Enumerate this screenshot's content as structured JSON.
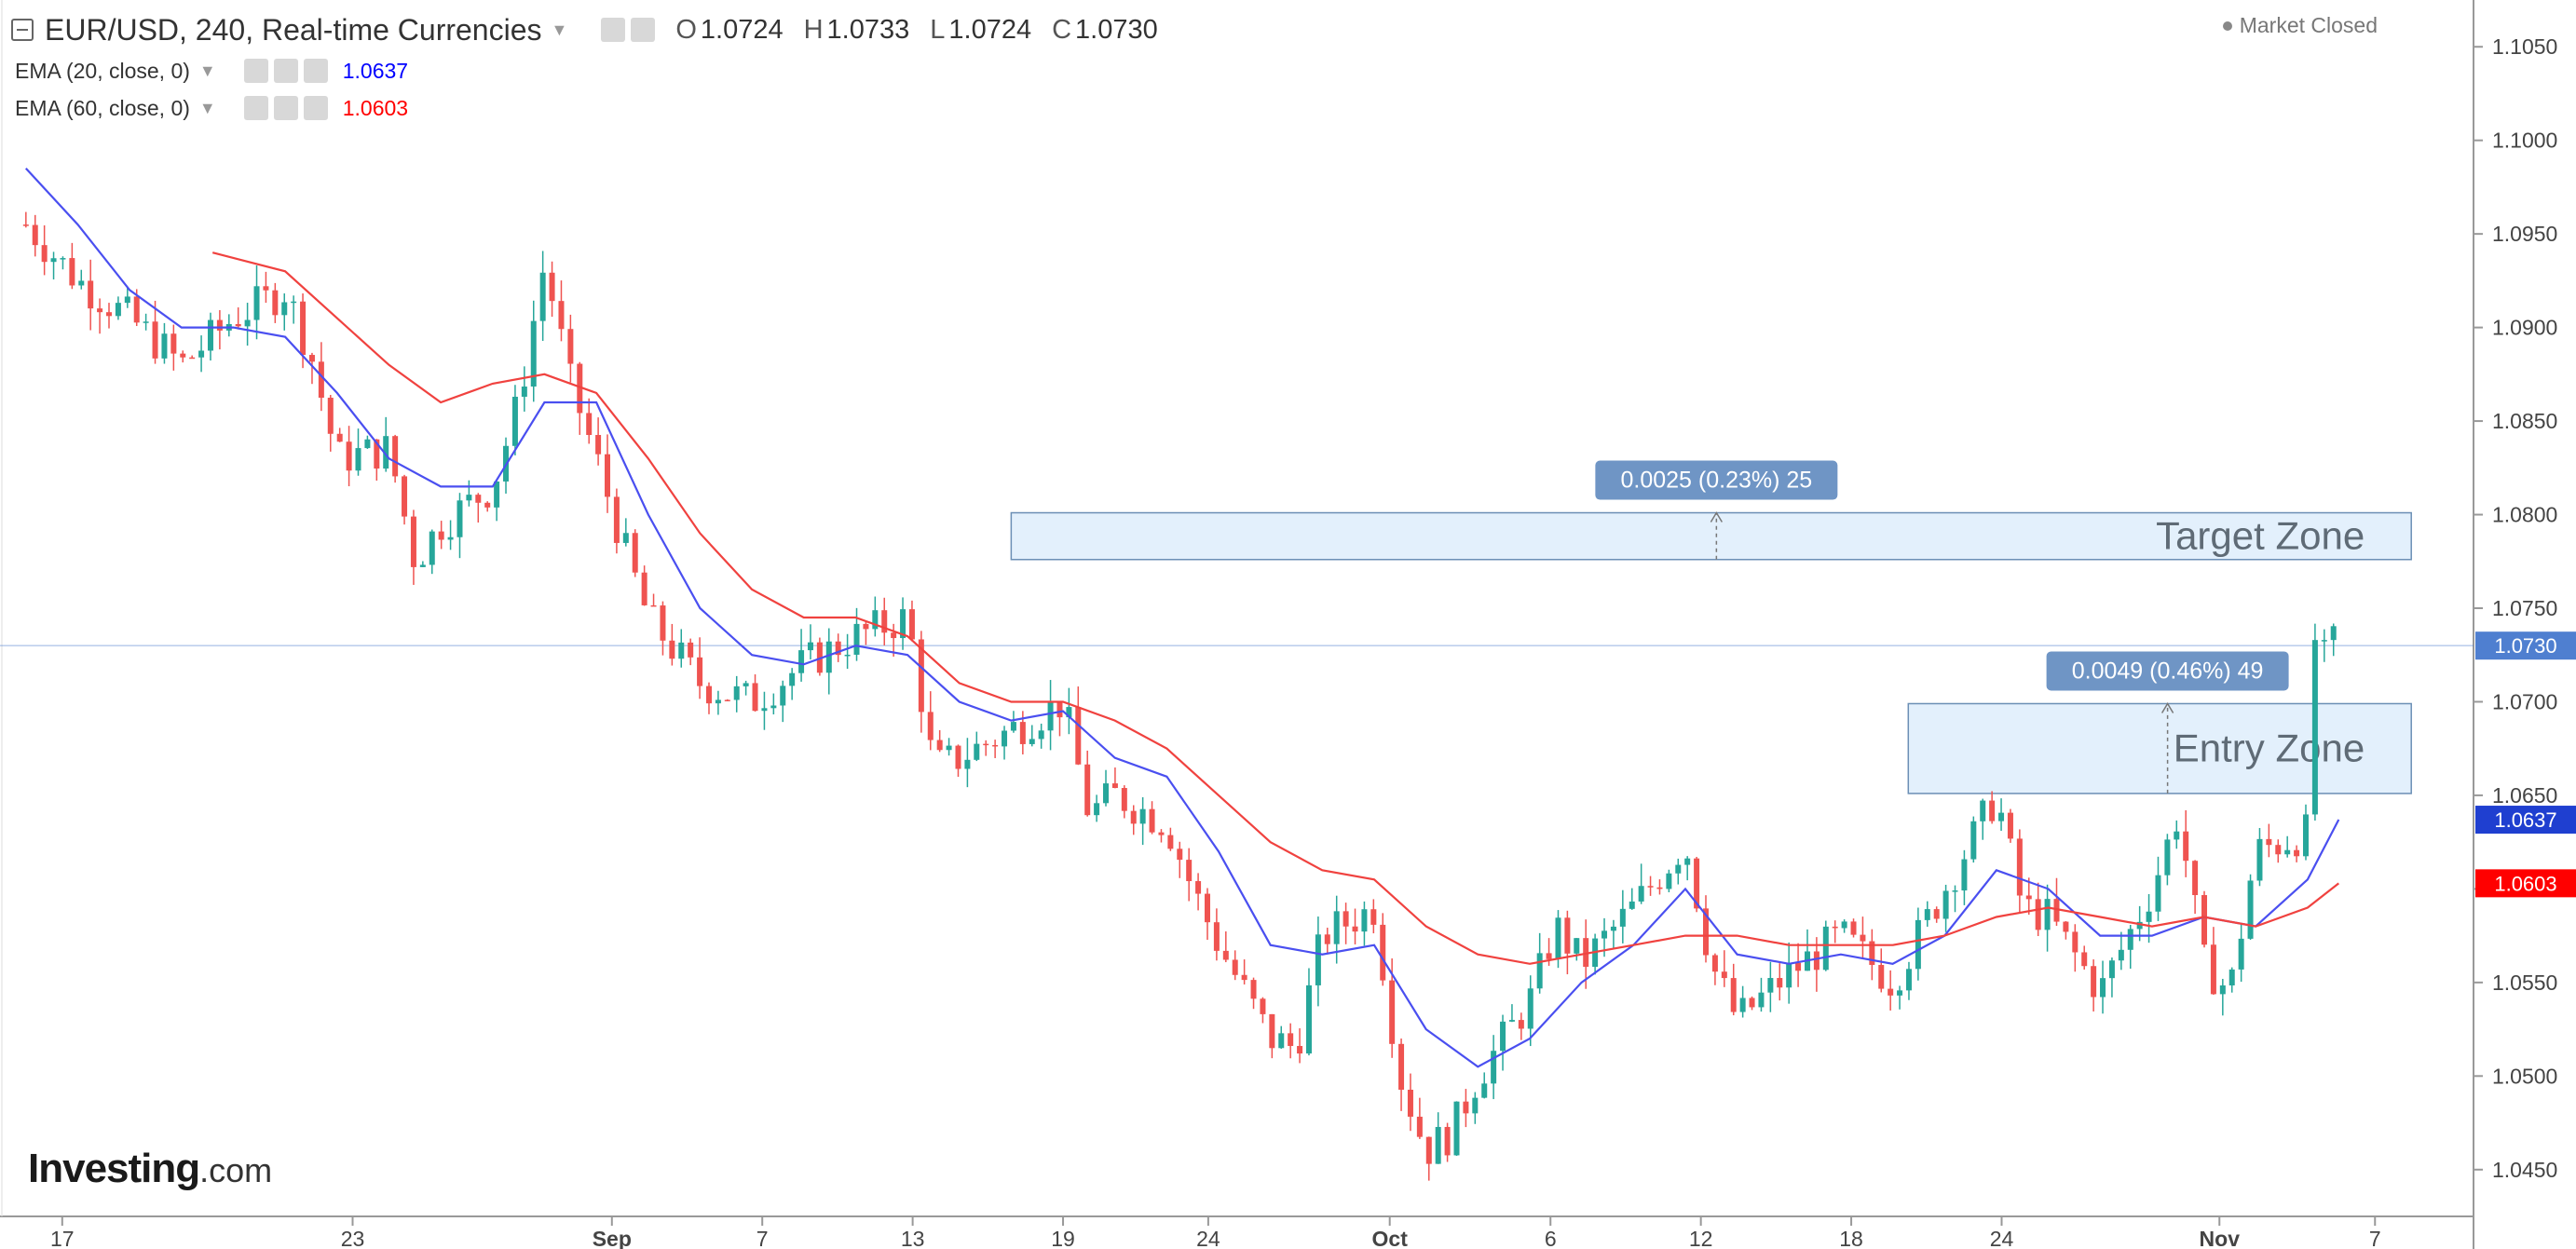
{
  "header": {
    "symbol": "EUR/USD, 240, Real-time Currencies",
    "ohlc": {
      "open_label": "O",
      "open": "1.0724",
      "high_label": "H",
      "high": "1.0733",
      "low_label": "L",
      "low": "1.0724",
      "close_label": "C",
      "close": "1.0730"
    },
    "market_status": "Market Closed"
  },
  "indicators": [
    {
      "label": "EMA (20, close, 0)",
      "value": "1.0637",
      "color": "#0000ff"
    },
    {
      "label": "EMA (60, close, 0)",
      "value": "1.0603",
      "color": "#ff0000"
    }
  ],
  "logo": {
    "main": "Investing",
    "suffix": ".com"
  },
  "colors": {
    "up": "#26a69a",
    "down": "#ef5350",
    "ema20": "#4a4ff0",
    "ema60": "#f0423f",
    "zone_fill": "#e3f0fc",
    "zone_border": "#6b8fb5",
    "callout": "#6f95c5",
    "price_line": "#4f7fd0"
  },
  "chart_data": {
    "type": "candlestick",
    "symbol": "EUR/USD",
    "interval": "240",
    "ylim": [
      1.0425,
      1.1075
    ],
    "y_ticks": [
      "1.1050",
      "1.1000",
      "1.0950",
      "1.0900",
      "1.0850",
      "1.0800",
      "1.0750",
      "1.0700",
      "1.0650",
      "1.0600",
      "1.0550",
      "1.0500",
      "1.0450"
    ],
    "x_ticks": [
      {
        "label": "17",
        "x": 0.7
      },
      {
        "label": "23",
        "x": 6.3
      },
      {
        "label": "Sep",
        "x": 11.3
      },
      {
        "label": "7",
        "x": 14.2
      },
      {
        "label": "13",
        "x": 17.1
      },
      {
        "label": "19",
        "x": 20.0
      },
      {
        "label": "24",
        "x": 22.8
      },
      {
        "label": "Oct",
        "x": 26.3
      },
      {
        "label": "6",
        "x": 29.4
      },
      {
        "label": "12",
        "x": 32.3
      },
      {
        "label": "18",
        "x": 35.2
      },
      {
        "label": "24",
        "x": 38.1
      },
      {
        "label": "Nov",
        "x": 42.3
      },
      {
        "label": "7",
        "x": 45.3
      }
    ],
    "price_path": [
      [
        0,
        1.0955
      ],
      [
        1,
        1.0925
      ],
      [
        2,
        1.0905
      ],
      [
        3,
        1.088
      ],
      [
        4,
        1.0905
      ],
      [
        5,
        1.092
      ],
      [
        5.5,
        1.0885
      ],
      [
        6,
        1.083
      ],
      [
        7,
        1.0835
      ],
      [
        7.5,
        1.0775
      ],
      [
        8,
        1.0795
      ],
      [
        9,
        1.0815
      ],
      [
        9.5,
        1.086
      ],
      [
        10,
        1.0935
      ],
      [
        10.5,
        1.087
      ],
      [
        11,
        1.083
      ],
      [
        11.5,
        1.0785
      ],
      [
        12,
        1.0745
      ],
      [
        13,
        1.071
      ],
      [
        14,
        1.07
      ],
      [
        15,
        1.072
      ],
      [
        16,
        1.0735
      ],
      [
        17,
        1.0745
      ],
      [
        17.5,
        1.0665
      ],
      [
        18,
        1.067
      ],
      [
        19,
        1.0685
      ],
      [
        20,
        1.07
      ],
      [
        20.5,
        1.064
      ],
      [
        21,
        1.065
      ],
      [
        22,
        1.0635
      ],
      [
        22.5,
        1.06
      ],
      [
        23,
        1.057
      ],
      [
        24,
        1.052
      ],
      [
        24.5,
        1.0515
      ],
      [
        25,
        1.0575
      ],
      [
        26,
        1.059
      ],
      [
        26.5,
        1.05
      ],
      [
        27,
        1.046
      ],
      [
        27.5,
        1.047
      ],
      [
        28,
        1.05
      ],
      [
        29,
        1.054
      ],
      [
        29.5,
        1.058
      ],
      [
        30,
        1.056
      ],
      [
        31,
        1.059
      ],
      [
        32,
        1.0625
      ],
      [
        32.5,
        1.056
      ],
      [
        33,
        1.053
      ],
      [
        34,
        1.0555
      ],
      [
        35,
        1.0575
      ],
      [
        36,
        1.055
      ],
      [
        37,
        1.06
      ],
      [
        38,
        1.065
      ],
      [
        38.5,
        1.059
      ],
      [
        39,
        1.0585
      ],
      [
        40,
        1.0545
      ],
      [
        41,
        1.06
      ],
      [
        41.5,
        1.064
      ],
      [
        42,
        1.056
      ],
      [
        42.5,
        1.0545
      ],
      [
        43,
        1.062
      ],
      [
        44,
        1.063
      ],
      [
        44.2,
        1.0735
      ],
      [
        44.6,
        1.073
      ]
    ],
    "series": [
      {
        "name": "EMA (20, close, 0)",
        "points": [
          [
            0,
            1.0985
          ],
          [
            1,
            1.0955
          ],
          [
            2,
            1.092
          ],
          [
            3,
            1.09
          ],
          [
            4,
            1.09
          ],
          [
            5,
            1.0895
          ],
          [
            6,
            1.0865
          ],
          [
            7,
            1.083
          ],
          [
            8,
            1.0815
          ],
          [
            9,
            1.0815
          ],
          [
            10,
            1.086
          ],
          [
            11,
            1.086
          ],
          [
            12,
            1.08
          ],
          [
            13,
            1.075
          ],
          [
            14,
            1.0725
          ],
          [
            15,
            1.072
          ],
          [
            16,
            1.073
          ],
          [
            17,
            1.0725
          ],
          [
            18,
            1.07
          ],
          [
            19,
            1.069
          ],
          [
            20,
            1.0695
          ],
          [
            21,
            1.067
          ],
          [
            22,
            1.066
          ],
          [
            23,
            1.062
          ],
          [
            24,
            1.057
          ],
          [
            25,
            1.0565
          ],
          [
            26,
            1.057
          ],
          [
            27,
            1.0525
          ],
          [
            28,
            1.0505
          ],
          [
            29,
            1.052
          ],
          [
            30,
            1.055
          ],
          [
            31,
            1.057
          ],
          [
            32,
            1.06
          ],
          [
            33,
            1.0565
          ],
          [
            34,
            1.056
          ],
          [
            35,
            1.0565
          ],
          [
            36,
            1.056
          ],
          [
            37,
            1.0575
          ],
          [
            38,
            1.061
          ],
          [
            39,
            1.06
          ],
          [
            40,
            1.0575
          ],
          [
            41,
            1.0575
          ],
          [
            42,
            1.0585
          ],
          [
            43,
            1.058
          ],
          [
            44,
            1.0605
          ],
          [
            44.6,
            1.0637
          ]
        ]
      },
      {
        "name": "EMA (60, close, 0)",
        "points": [
          [
            3.6,
            1.094
          ],
          [
            5,
            1.093
          ],
          [
            6,
            1.0905
          ],
          [
            7,
            1.088
          ],
          [
            8,
            1.086
          ],
          [
            9,
            1.087
          ],
          [
            10,
            1.0875
          ],
          [
            11,
            1.0865
          ],
          [
            12,
            1.083
          ],
          [
            13,
            1.079
          ],
          [
            14,
            1.076
          ],
          [
            15,
            1.0745
          ],
          [
            16,
            1.0745
          ],
          [
            17,
            1.0735
          ],
          [
            18,
            1.071
          ],
          [
            19,
            1.07
          ],
          [
            20,
            1.07
          ],
          [
            21,
            1.069
          ],
          [
            22,
            1.0675
          ],
          [
            23,
            1.065
          ],
          [
            24,
            1.0625
          ],
          [
            25,
            1.061
          ],
          [
            26,
            1.0605
          ],
          [
            27,
            1.058
          ],
          [
            28,
            1.0565
          ],
          [
            29,
            1.056
          ],
          [
            30,
            1.0565
          ],
          [
            31,
            1.057
          ],
          [
            32,
            1.0575
          ],
          [
            33,
            1.0575
          ],
          [
            34,
            1.057
          ],
          [
            35,
            1.057
          ],
          [
            36,
            1.057
          ],
          [
            37,
            1.0575
          ],
          [
            38,
            1.0585
          ],
          [
            39,
            1.059
          ],
          [
            40,
            1.0585
          ],
          [
            41,
            1.058
          ],
          [
            42,
            1.0585
          ],
          [
            43,
            1.058
          ],
          [
            44,
            1.059
          ],
          [
            44.6,
            1.0603
          ]
        ]
      }
    ],
    "zones": [
      {
        "label": "Target Zone",
        "x0": 19.0,
        "x1": 46.0,
        "y0": 1.0776,
        "y1": 1.0801
      },
      {
        "label": "Entry Zone",
        "x0": 36.3,
        "x1": 46.0,
        "y0": 1.0651,
        "y1": 1.0699
      }
    ],
    "measures": [
      {
        "label": "0.0025 (0.23%) 25",
        "x": 32.6,
        "y0": 1.0776,
        "y1": 1.0801
      },
      {
        "label": "0.0049 (0.46%) 49",
        "x": 41.3,
        "y0": 1.0651,
        "y1": 1.0699
      }
    ],
    "axis_labels": [
      {
        "label": "1.0730",
        "value": 1.073,
        "color": "#4f7fd0"
      },
      {
        "label": "1.0637",
        "value": 1.0637,
        "color": "#1f3fd0"
      },
      {
        "label": "1.0603",
        "value": 1.0603,
        "color": "#ff0000"
      }
    ],
    "current_price": 1.073
  }
}
